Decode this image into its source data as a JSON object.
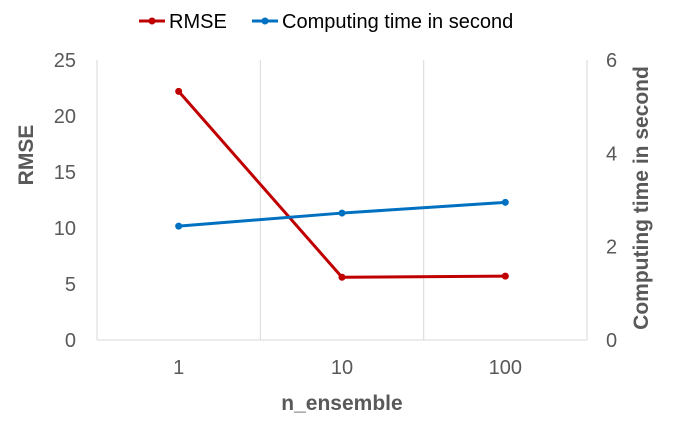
{
  "chart_data": {
    "type": "line",
    "title": "",
    "categories": [
      "1",
      "10",
      "100"
    ],
    "xlabel": "n_ensemble",
    "ylabel_left": "RMSE",
    "ylabel_right": "Computing time in second",
    "ylim_left": [
      0,
      25
    ],
    "yticks_left": [
      "0",
      "5",
      "10",
      "15",
      "20",
      "25"
    ],
    "ylim_right": [
      0,
      6
    ],
    "yticks_right": [
      "0",
      "2",
      "4",
      "6"
    ],
    "grid": "vertical",
    "legend_position": "top",
    "series": [
      {
        "name": "RMSE",
        "axis": "left",
        "color": "#c00000",
        "values": [
          22.2,
          5.6,
          5.7
        ]
      },
      {
        "name": "Computing time in second",
        "axis": "right",
        "color": "#0070c0",
        "values": [
          2.44,
          2.72,
          2.95
        ]
      }
    ]
  }
}
